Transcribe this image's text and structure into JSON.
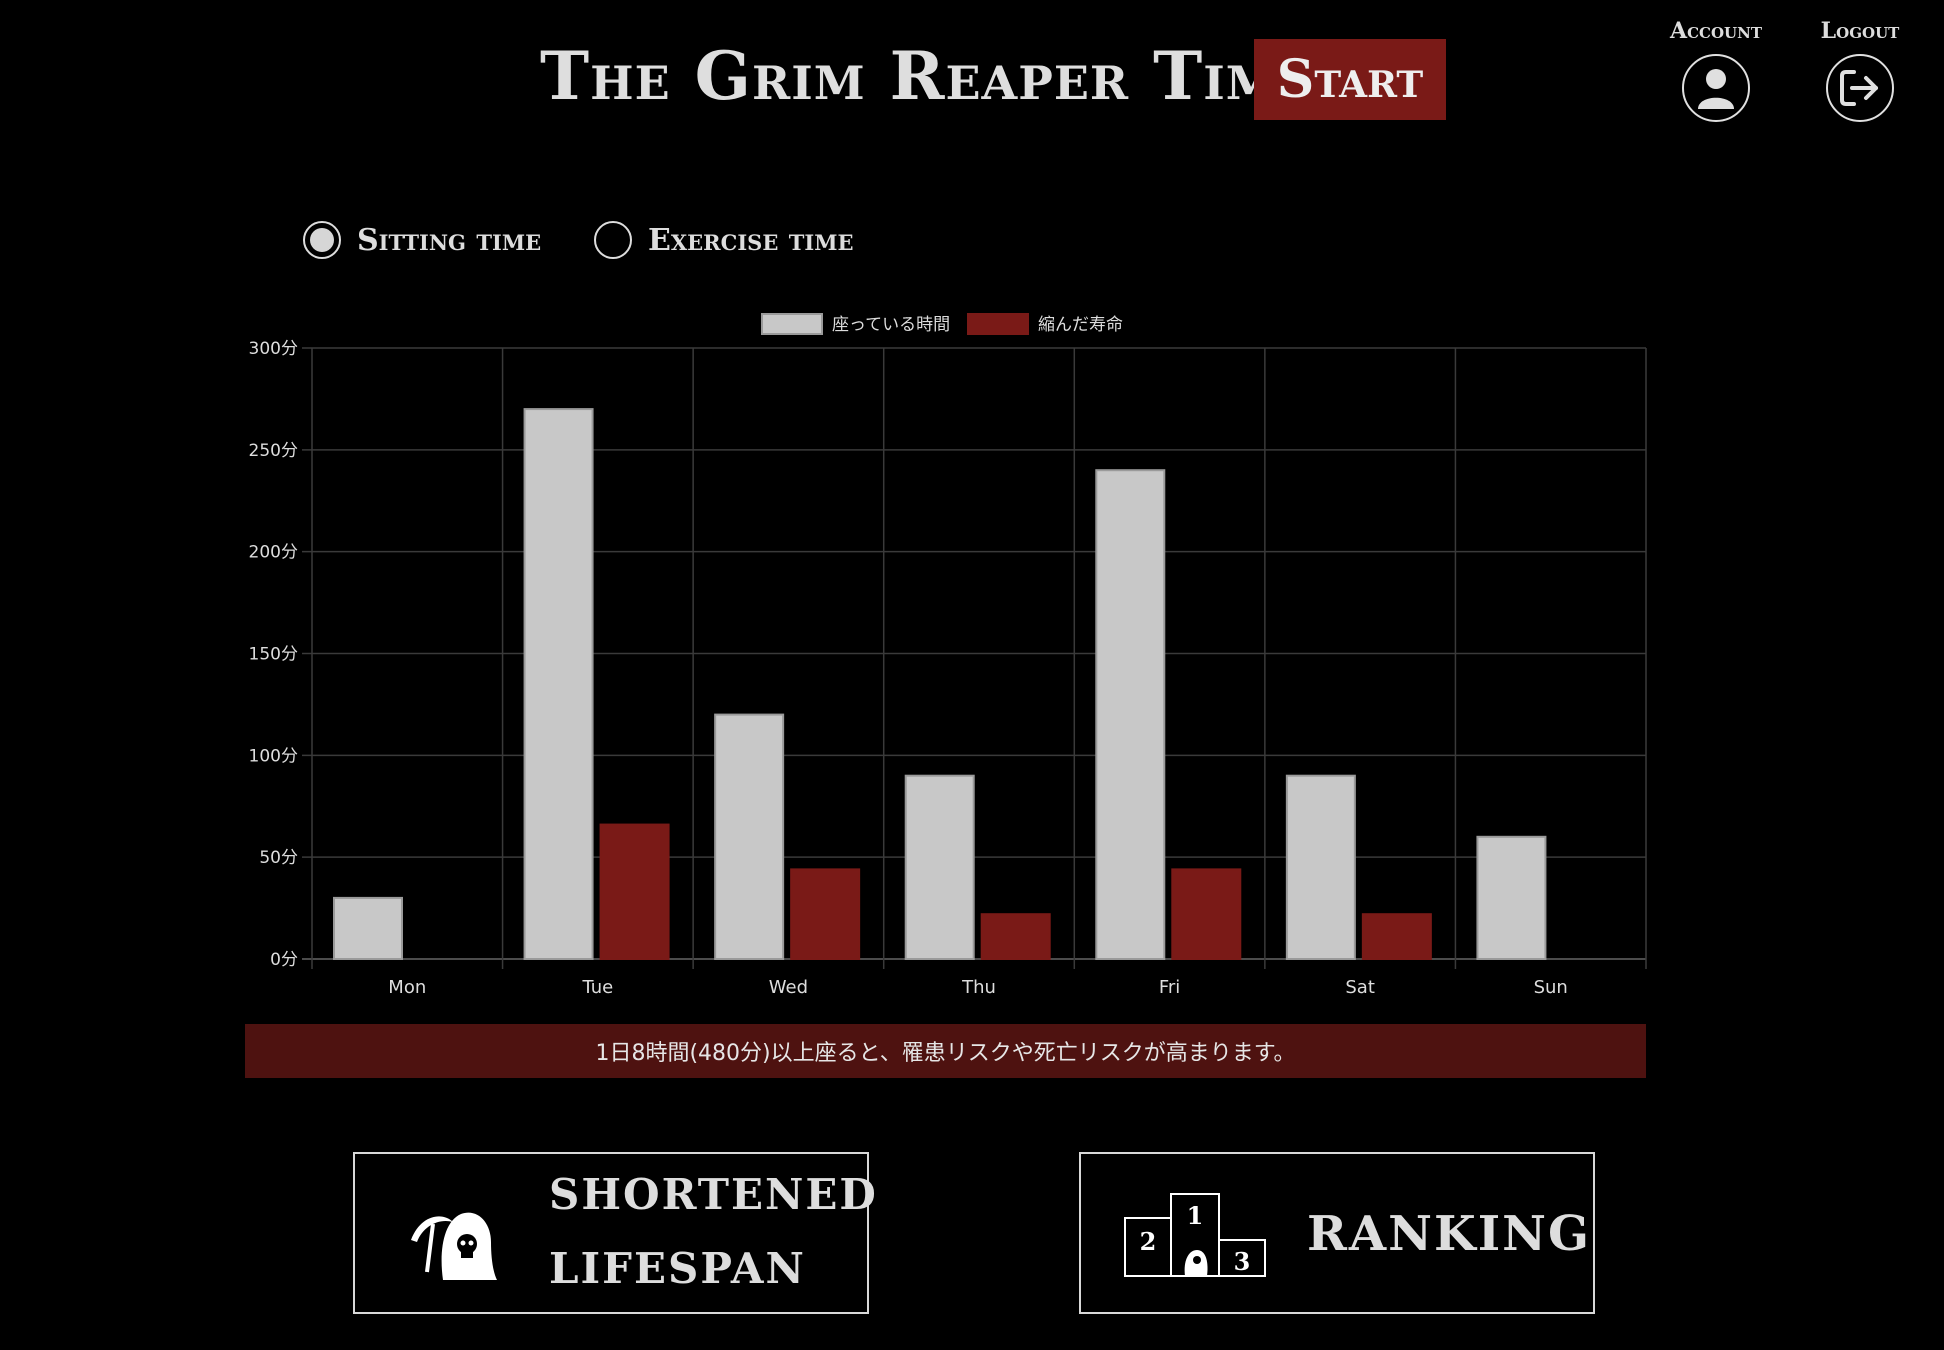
{
  "header": {
    "title": "The Grim Reaper Timer",
    "start_label": "Start",
    "account_label": "Account",
    "logout_label": "Logout"
  },
  "toggle": {
    "options": [
      "Sitting time",
      "Exercise time"
    ],
    "selected": "Sitting time"
  },
  "chart_data": {
    "type": "bar",
    "categories": [
      "Mon",
      "Tue",
      "Wed",
      "Thu",
      "Fri",
      "Sat",
      "Sun"
    ],
    "series": [
      {
        "name": "座っている時間",
        "color": "#c8c8c8",
        "values": [
          30,
          270,
          120,
          90,
          240,
          90,
          60
        ]
      },
      {
        "name": "縮んだ寿命",
        "color": "#7a1a17",
        "values": [
          0,
          66,
          44,
          22,
          44,
          22,
          0
        ]
      }
    ],
    "yticks": [
      "0分",
      "50分",
      "100分",
      "150分",
      "200分",
      "250分",
      "300分"
    ],
    "ylim": [
      0,
      300
    ],
    "grid": true,
    "legend": "top-center"
  },
  "warning": "1日8時間(480分)以上座ると、罹患リスクや死亡リスクが高まります。",
  "cards": {
    "lifespan_line1": "SHORTENED",
    "lifespan_line2": "LIFESPAN",
    "ranking_label": "RANKING",
    "podium": [
      "1",
      "2",
      "3"
    ]
  },
  "colors": {
    "accent": "#7a1a17",
    "banner": "#4e1210",
    "bar_light": "#c8c8c8"
  }
}
